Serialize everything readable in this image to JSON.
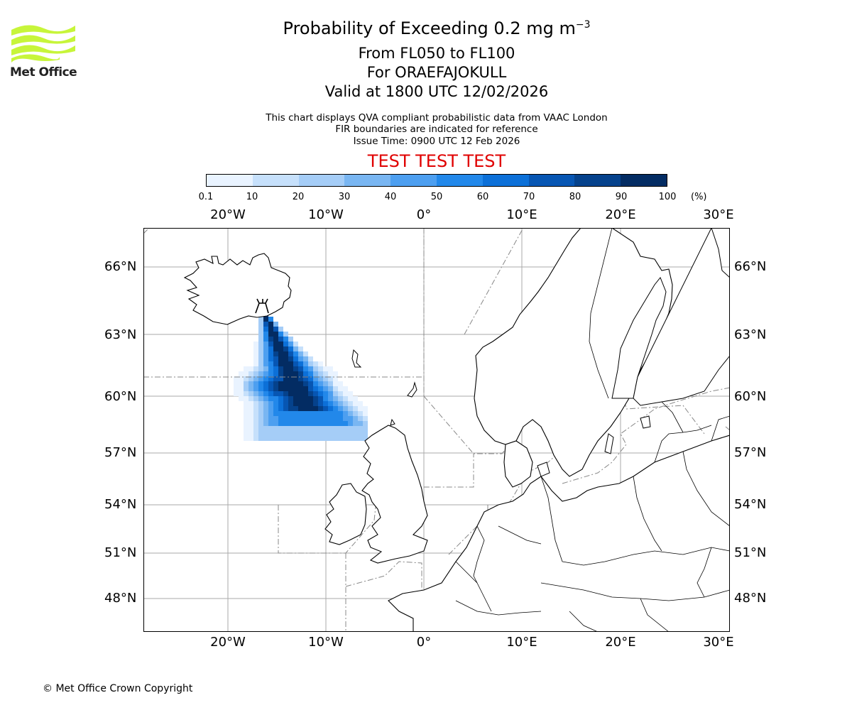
{
  "header": {
    "title_main": "Probability of Exceeding 0.2 mg m",
    "title_sup": "−3",
    "title_line2": "From FL050 to FL100",
    "title_line3": "For ORAEFAJOKULL",
    "title_line4": "Valid at 1800 UTC 12/02/2026",
    "subtitle1": "This chart displays QVA compliant probabilistic data from VAAC London",
    "subtitle2": "FIR boundaries are indicated for reference",
    "subtitle3": "Issue Time: 0900 UTC 12 Feb 2026",
    "test_banner": "TEST TEST TEST",
    "test_color": "#e00000"
  },
  "logo": {
    "text": "Met Office",
    "icon": "met-office-waves-logo",
    "color": "#c7f53a"
  },
  "colorbar": {
    "ticks": [
      "0.1",
      "10",
      "20",
      "30",
      "40",
      "50",
      "60",
      "70",
      "80",
      "90",
      "100"
    ],
    "unit": "(%)",
    "colors": [
      "#e9f3ff",
      "#c6e0fb",
      "#a5cdf7",
      "#79b6f2",
      "#4d9ff0",
      "#2288ea",
      "#0c70d8",
      "#0756b3",
      "#05428c",
      "#032c63"
    ]
  },
  "map": {
    "lon_labels": [
      "20°W",
      "10°W",
      "0°",
      "10°E",
      "20°E",
      "30°E"
    ],
    "lat_labels": [
      "66°N",
      "63°N",
      "60°N",
      "57°N",
      "54°N",
      "51°N",
      "48°N"
    ],
    "volcano_icon": "volcano-icon"
  },
  "footer": {
    "copyright": "© Met Office Crown Copyright"
  }
}
